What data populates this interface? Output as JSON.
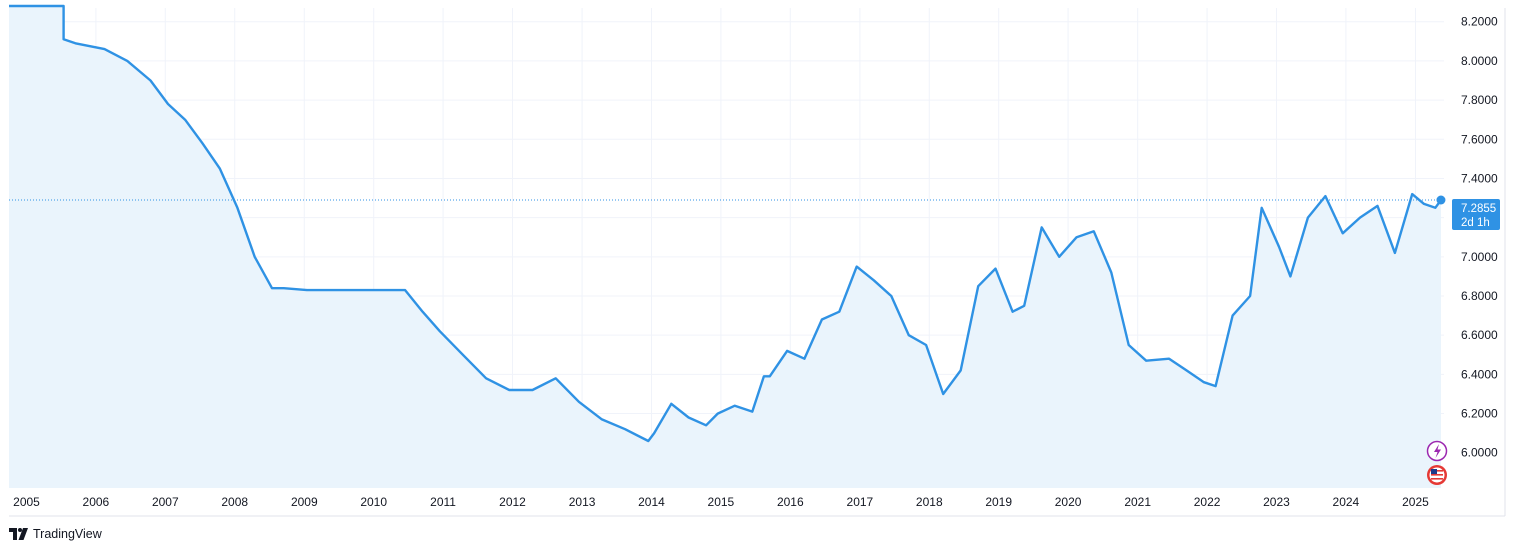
{
  "brand": {
    "name": "TradingView"
  },
  "price_label": {
    "value": "7.2855",
    "countdown": "2d 1h"
  },
  "colors": {
    "line": "#2f92e4",
    "fill": "#eaf4fc",
    "grid": "#f0f3fa",
    "label_bg": "#2f92e4",
    "text": "#131722"
  },
  "icons": [
    "lightning-icon",
    "us-flag-icon"
  ],
  "chart_data": {
    "type": "line",
    "title": "",
    "xlabel": "",
    "ylabel": "",
    "x_tick_labels": [
      "2005",
      "2006",
      "2007",
      "2008",
      "2009",
      "2010",
      "2011",
      "2012",
      "2013",
      "2014",
      "2015",
      "2016",
      "2017",
      "2018",
      "2019",
      "2020",
      "2021",
      "2022",
      "2023",
      "2024",
      "2025"
    ],
    "y_tick_labels": [
      "6.0000",
      "6.2000",
      "6.4000",
      "6.6000",
      "6.8000",
      "7.0000",
      "7.2000",
      "7.4000",
      "7.6000",
      "7.8000",
      "8.0000",
      "8.2000"
    ],
    "ylim": [
      5.82,
      8.27
    ],
    "xlim": [
      "2004-10-01",
      "2025-05-31"
    ],
    "grid": true,
    "legend": "none",
    "series": [
      {
        "x": [
          "2004-10",
          "2005-07",
          "2005-07",
          "2005-09",
          "2006-02",
          "2006-06",
          "2006-10",
          "2007-01",
          "2007-04",
          "2007-07",
          "2007-10",
          "2008-01",
          "2008-04",
          "2008-07",
          "2008-09",
          "2009-01",
          "2009-06",
          "2009-12",
          "2010-06",
          "2010-09",
          "2010-12",
          "2011-04",
          "2011-08",
          "2011-12",
          "2012-04",
          "2012-08",
          "2012-12",
          "2013-04",
          "2013-08",
          "2013-12",
          "2014-01",
          "2014-04",
          "2014-07",
          "2014-10",
          "2014-12",
          "2015-03",
          "2015-06",
          "2015-08",
          "2015-09",
          "2015-12",
          "2016-03",
          "2016-06",
          "2016-09",
          "2016-12",
          "2017-03",
          "2017-06",
          "2017-09",
          "2017-12",
          "2018-03",
          "2018-06",
          "2018-09",
          "2018-12",
          "2019-03",
          "2019-05",
          "2019-08",
          "2019-11",
          "2020-02",
          "2020-05",
          "2020-08",
          "2020-11",
          "2021-02",
          "2021-06",
          "2021-09",
          "2021-12",
          "2022-02",
          "2022-05",
          "2022-08",
          "2022-10",
          "2023-01",
          "2023-03",
          "2023-06",
          "2023-09",
          "2023-12",
          "2024-03",
          "2024-06",
          "2024-09",
          "2024-12",
          "2025-02",
          "2025-04",
          "2025-05"
        ],
        "y": [
          8.28,
          8.28,
          8.11,
          8.09,
          8.06,
          8.0,
          7.9,
          7.78,
          7.7,
          7.58,
          7.45,
          7.25,
          7.0,
          6.84,
          6.84,
          6.83,
          6.83,
          6.83,
          6.83,
          6.72,
          6.62,
          6.5,
          6.38,
          6.32,
          6.32,
          6.38,
          6.26,
          6.17,
          6.12,
          6.06,
          6.1,
          6.25,
          6.18,
          6.14,
          6.2,
          6.24,
          6.21,
          6.39,
          6.39,
          6.52,
          6.48,
          6.68,
          6.72,
          6.95,
          6.88,
          6.8,
          6.6,
          6.55,
          6.3,
          6.42,
          6.85,
          6.94,
          6.72,
          6.75,
          7.15,
          7.0,
          7.1,
          7.13,
          6.92,
          6.55,
          6.47,
          6.48,
          6.42,
          6.36,
          6.34,
          6.7,
          6.8,
          7.25,
          7.05,
          6.9,
          7.2,
          7.31,
          7.12,
          7.2,
          7.26,
          7.02,
          7.32,
          7.27,
          7.25,
          7.29
        ]
      }
    ]
  }
}
